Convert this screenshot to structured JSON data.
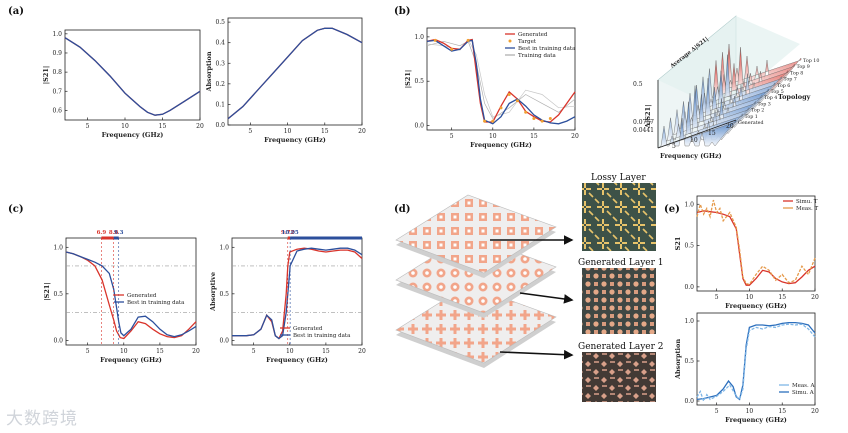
{
  "panel_labels": [
    "(a)",
    "(b)",
    "(c)",
    "(d)",
    "(e)"
  ],
  "chart_data": [
    {
      "id": "a1",
      "type": "line",
      "xlabel": "Frequency (GHz)",
      "ylabel": "|S21|",
      "xlim": [
        2,
        20
      ],
      "ylim": [
        0.55,
        1.02
      ],
      "xticks": [
        5,
        10,
        15,
        20
      ],
      "yticks": [
        0.6,
        0.7,
        0.8,
        0.9,
        1.0
      ],
      "ytick_labels": [
        "0.6",
        "0.7",
        "0.8",
        "0.9",
        "1.0"
      ],
      "series": [
        {
          "name": "red",
          "color": "#d9342b",
          "x": [
            2,
            4,
            6,
            8,
            10,
            12,
            13,
            14,
            15,
            16,
            18,
            20
          ],
          "y": [
            0.98,
            0.93,
            0.86,
            0.78,
            0.69,
            0.62,
            0.59,
            0.575,
            0.58,
            0.6,
            0.65,
            0.7
          ]
        },
        {
          "name": "blue",
          "color": "#2c4f9c",
          "x": [
            2,
            4,
            6,
            8,
            10,
            12,
            13,
            14,
            15,
            16,
            18,
            20
          ],
          "y": [
            0.98,
            0.93,
            0.86,
            0.78,
            0.69,
            0.62,
            0.59,
            0.575,
            0.58,
            0.6,
            0.65,
            0.7
          ]
        }
      ]
    },
    {
      "id": "a2",
      "type": "line",
      "xlabel": "Frequency (GHz)",
      "ylabel": "Absorption",
      "xlim": [
        2,
        20
      ],
      "ylim": [
        0,
        0.52
      ],
      "xticks": [
        5,
        10,
        15,
        20
      ],
      "yticks": [
        0,
        0.1,
        0.2,
        0.3,
        0.4,
        0.5
      ],
      "ytick_labels": [
        "0.0",
        "0.1",
        "0.2",
        "0.3",
        "0.4",
        "0.5"
      ],
      "series": [
        {
          "name": "red",
          "color": "#d9342b",
          "x": [
            2,
            4,
            6,
            8,
            10,
            12,
            14,
            15,
            16,
            18,
            20
          ],
          "y": [
            0.03,
            0.09,
            0.17,
            0.25,
            0.33,
            0.41,
            0.46,
            0.47,
            0.47,
            0.44,
            0.4
          ]
        },
        {
          "name": "blue",
          "color": "#2c4f9c",
          "x": [
            2,
            4,
            6,
            8,
            10,
            12,
            14,
            15,
            16,
            18,
            20
          ],
          "y": [
            0.03,
            0.09,
            0.17,
            0.25,
            0.33,
            0.41,
            0.46,
            0.47,
            0.47,
            0.44,
            0.4
          ]
        }
      ]
    },
    {
      "id": "b1",
      "type": "line",
      "xlabel": "Frequency (GHz)",
      "ylabel": "|S21|",
      "xlim": [
        2,
        20
      ],
      "ylim": [
        -0.05,
        1.1
      ],
      "xticks": [
        5,
        10,
        15,
        20
      ],
      "yticks": [
        0,
        0.5,
        1.0
      ],
      "ytick_labels": [
        "0.0",
        "0.5",
        "1.0"
      ],
      "legend": [
        "Generated",
        "Target",
        "Best in training data",
        "Training data"
      ],
      "series": [
        {
          "name": "Training data",
          "color": "#b0b0b0",
          "x": [
            2,
            4,
            6,
            7,
            8,
            9,
            10,
            12,
            14,
            16,
            18,
            20
          ],
          "y": [
            0.9,
            0.95,
            0.9,
            0.95,
            0.7,
            0.25,
            0.08,
            0.2,
            0.35,
            0.25,
            0.15,
            0.3
          ]
        },
        {
          "name": "Training data 2",
          "color": "#c8c8c8",
          "x": [
            2,
            4,
            6,
            7,
            8,
            9,
            10,
            12,
            14,
            16,
            18,
            20
          ],
          "y": [
            0.92,
            0.9,
            0.85,
            0.97,
            0.8,
            0.35,
            0.1,
            0.15,
            0.4,
            0.35,
            0.2,
            0.22
          ]
        },
        {
          "name": "Generated",
          "color": "#d9342b",
          "x": [
            2,
            3,
            4,
            5,
            6,
            7,
            7.5,
            8,
            8.5,
            9,
            10,
            11,
            12,
            13,
            14,
            15,
            16,
            17,
            18,
            19,
            20
          ],
          "y": [
            0.95,
            0.97,
            0.93,
            0.87,
            0.86,
            0.96,
            0.97,
            0.6,
            0.25,
            0.04,
            0.04,
            0.22,
            0.38,
            0.3,
            0.16,
            0.1,
            0.05,
            0.04,
            0.12,
            0.25,
            0.38
          ]
        },
        {
          "name": "Best in training data",
          "color": "#2c4f9c",
          "x": [
            2,
            3,
            4,
            5,
            6,
            7,
            7.5,
            8,
            8.5,
            9,
            10,
            11,
            12,
            13,
            14,
            15,
            16,
            17,
            18,
            19,
            20
          ],
          "y": [
            0.95,
            0.96,
            0.9,
            0.84,
            0.86,
            0.95,
            0.96,
            0.7,
            0.3,
            0.06,
            0.02,
            0.1,
            0.25,
            0.3,
            0.22,
            0.12,
            0.06,
            0.03,
            0.02,
            0.05,
            0.1
          ]
        }
      ],
      "target_points": {
        "x": [
          3,
          5,
          7,
          9,
          10,
          11,
          12,
          13,
          14,
          15,
          16,
          17
        ],
        "y": [
          0.96,
          0.86,
          0.96,
          0.05,
          0.05,
          0.2,
          0.35,
          0.28,
          0.15,
          0.08,
          0.05,
          0.08
        ]
      }
    },
    {
      "id": "b2",
      "type": "line",
      "xlabel": "Frequency (GHz)",
      "ylabel": "Δ|S21|",
      "zlabel": "Topology",
      "yticks": [
        0.0441,
        0.0757,
        0.5
      ],
      "ytick_labels": [
        "0.0441",
        "0.0757",
        "0.5"
      ],
      "xticks": [
        5,
        10,
        15,
        20
      ],
      "topology_labels": [
        "Generated",
        "Top 1",
        "Top 2",
        "Top 3",
        "Top 4",
        "Top 5",
        "Top 6",
        "Top 7",
        "Top 8",
        "Top 9",
        "Top 10"
      ],
      "plane_label": "Average Δ|S21|"
    },
    {
      "id": "c1",
      "type": "line",
      "xlabel": "Frequency (GHz)",
      "ylabel": "|S21|",
      "xlim": [
        2,
        20
      ],
      "ylim": [
        -0.05,
        1.1
      ],
      "xticks": [
        5,
        10,
        15,
        20
      ],
      "yticks": [
        0,
        0.5,
        1.0
      ],
      "ytick_labels": [
        "0.0",
        "0.5",
        "1.0"
      ],
      "legend": [
        "Generated",
        "Best in training data"
      ],
      "markers": [
        {
          "label": "6.9",
          "x": 6.9,
          "color": "#d9342b"
        },
        {
          "label": "8.6",
          "x": 8.6,
          "color": "#d9342b"
        },
        {
          "label": "9.3",
          "x": 9.3,
          "color": "#2c4f9c"
        }
      ],
      "hlines": [
        0.8,
        0.3
      ],
      "series": [
        {
          "name": "Generated",
          "color": "#d9342b",
          "x": [
            2,
            3,
            4,
            5,
            6,
            7,
            8,
            8.6,
            9,
            9.5,
            10,
            11,
            12,
            13,
            14,
            15,
            16,
            17,
            18,
            19,
            20
          ],
          "y": [
            0.95,
            0.93,
            0.9,
            0.86,
            0.8,
            0.65,
            0.38,
            0.22,
            0.1,
            0.03,
            0.02,
            0.1,
            0.2,
            0.18,
            0.12,
            0.07,
            0.04,
            0.03,
            0.05,
            0.12,
            0.2
          ]
        },
        {
          "name": "Best in training data",
          "color": "#2c4f9c",
          "x": [
            2,
            3,
            4,
            5,
            6,
            7,
            8,
            8.6,
            9,
            9.3,
            9.6,
            10,
            11,
            12,
            13,
            14,
            15,
            16,
            17,
            18,
            19,
            20
          ],
          "y": [
            0.95,
            0.93,
            0.9,
            0.87,
            0.84,
            0.8,
            0.72,
            0.55,
            0.35,
            0.2,
            0.08,
            0.05,
            0.12,
            0.25,
            0.26,
            0.2,
            0.12,
            0.06,
            0.04,
            0.06,
            0.1,
            0.15
          ]
        }
      ]
    },
    {
      "id": "c2",
      "type": "line",
      "xlabel": "Frequency (GHz)",
      "ylabel": "Absorptive",
      "xlim": [
        2,
        20
      ],
      "ylim": [
        -0.05,
        1.1
      ],
      "xticks": [
        5,
        10,
        15,
        20
      ],
      "yticks": [
        0,
        0.5,
        1.0
      ],
      "ytick_labels": [
        "0.0",
        "0.5",
        "1.0"
      ],
      "legend": [
        "Generated",
        "Best in training data"
      ],
      "markers": [
        {
          "label": "9.72",
          "x": 9.72,
          "color": "#d9342b"
        },
        {
          "label": "10.05",
          "x": 10.05,
          "color": "#2c4f9c"
        }
      ],
      "hlines": [
        0.8,
        0.3
      ],
      "series": [
        {
          "name": "Generated",
          "color": "#d9342b",
          "x": [
            2,
            3,
            4,
            5,
            6,
            6.8,
            7.5,
            8,
            8.5,
            9,
            9.5,
            9.72,
            10,
            11,
            12,
            13,
            14,
            15,
            16,
            17,
            18,
            19,
            20
          ],
          "y": [
            0.05,
            0.05,
            0.05,
            0.06,
            0.12,
            0.27,
            0.2,
            0.05,
            0.02,
            0.1,
            0.5,
            0.8,
            0.95,
            0.98,
            0.99,
            0.98,
            0.96,
            0.95,
            0.96,
            0.97,
            0.97,
            0.95,
            0.88
          ]
        },
        {
          "name": "Best in training data",
          "color": "#2c4f9c",
          "x": [
            2,
            3,
            4,
            5,
            6,
            6.8,
            7.5,
            8,
            8.5,
            9,
            9.5,
            10,
            10.05,
            11,
            12,
            13,
            14,
            15,
            16,
            17,
            18,
            19,
            20
          ],
          "y": [
            0.05,
            0.05,
            0.05,
            0.06,
            0.12,
            0.27,
            0.22,
            0.05,
            0.02,
            0.05,
            0.3,
            0.75,
            0.8,
            0.96,
            0.98,
            0.99,
            0.98,
            0.97,
            0.98,
            0.99,
            0.99,
            0.97,
            0.92
          ]
        }
      ]
    },
    {
      "id": "e1",
      "type": "line",
      "xlabel": "Frequency (GHz)",
      "ylabel": "S21",
      "xlim": [
        2,
        20
      ],
      "ylim": [
        -0.05,
        1.1
      ],
      "xticks": [
        5,
        10,
        15,
        20
      ],
      "yticks": [
        0,
        0.5,
        1
      ],
      "ytick_labels": [
        "0.0",
        "0.5",
        "1.0"
      ],
      "legend": [
        "Simu. T",
        "Meas. T"
      ],
      "series": [
        {
          "name": "Simu. T",
          "color": "#d9342b",
          "x": [
            2,
            3,
            4,
            5,
            6,
            7,
            8,
            8.5,
            9,
            9.5,
            10,
            11,
            12,
            13,
            14,
            15,
            16,
            17,
            18,
            19,
            20
          ],
          "y": [
            0.9,
            0.92,
            0.91,
            0.9,
            0.88,
            0.85,
            0.7,
            0.4,
            0.1,
            0.02,
            0.02,
            0.1,
            0.2,
            0.18,
            0.1,
            0.06,
            0.04,
            0.05,
            0.12,
            0.2,
            0.25
          ]
        },
        {
          "name": "Meas. T",
          "color": "#e59a4b",
          "x": [
            2,
            2.5,
            3,
            3.5,
            4,
            4.5,
            5,
            5.5,
            6,
            7,
            8,
            8.5,
            9,
            9.5,
            10,
            11,
            12,
            13,
            14,
            15,
            16,
            17,
            18,
            19,
            20
          ],
          "y": [
            0.85,
            1.0,
            0.88,
            0.95,
            0.85,
            1.05,
            0.9,
            0.95,
            0.8,
            0.9,
            0.72,
            0.45,
            0.12,
            0.04,
            0.03,
            0.15,
            0.25,
            0.2,
            0.08,
            0.15,
            0.05,
            0.08,
            0.25,
            0.15,
            0.35
          ]
        }
      ]
    },
    {
      "id": "e2",
      "type": "line",
      "xlabel": "Frequency (GHz)",
      "ylabel": "Absorption",
      "xlim": [
        2,
        20
      ],
      "ylim": [
        -0.05,
        1.1
      ],
      "xticks": [
        5,
        10,
        15,
        20
      ],
      "yticks": [
        0,
        0.5,
        1
      ],
      "ytick_labels": [
        "0.0",
        "0.5",
        "1.0"
      ],
      "legend": [
        "Meas. A",
        "Simu. A"
      ],
      "series": [
        {
          "name": "Simu. A",
          "color": "#2c6fbd",
          "x": [
            2,
            3,
            4,
            5,
            6,
            6.8,
            7.5,
            8,
            8.5,
            9,
            9.5,
            10,
            11,
            12,
            13,
            14,
            15,
            16,
            17,
            18,
            19,
            20
          ],
          "y": [
            0.02,
            0.03,
            0.05,
            0.07,
            0.15,
            0.25,
            0.18,
            0.05,
            0.02,
            0.2,
            0.7,
            0.92,
            0.95,
            0.95,
            0.94,
            0.95,
            0.97,
            0.98,
            0.98,
            0.97,
            0.95,
            0.85
          ]
        },
        {
          "name": "Meas. A",
          "color": "#7fb6e6",
          "x": [
            2,
            2.5,
            3,
            3.5,
            4,
            5,
            6,
            7,
            8,
            8.5,
            9,
            9.5,
            10,
            11,
            12,
            13,
            14,
            15,
            16,
            17,
            18,
            19,
            20
          ],
          "y": [
            0.05,
            0.12,
            0.0,
            0.08,
            0.02,
            0.06,
            0.12,
            0.2,
            0.06,
            0.02,
            0.15,
            0.65,
            0.88,
            0.92,
            0.9,
            0.93,
            0.92,
            0.95,
            0.96,
            0.95,
            0.96,
            0.9,
            0.8
          ]
        }
      ]
    }
  ],
  "layer_labels": [
    "Lossy Layer",
    "Generated Layer 1",
    "Generated Layer 2"
  ],
  "watermark": "大数跨境"
}
